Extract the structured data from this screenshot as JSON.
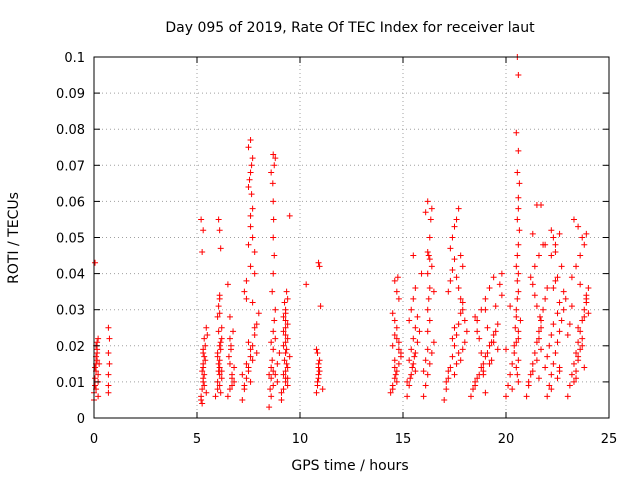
{
  "chart_data": {
    "type": "scatter",
    "title": "Day 095 of 2019, Rate Of TEC Index for receiver laut",
    "xlabel": "GPS time / hours",
    "ylabel": "ROTI / TECUs",
    "xlim": [
      0,
      25
    ],
    "ylim": [
      0,
      0.1
    ],
    "xticks": [
      "0",
      "5",
      "10",
      "15",
      "20",
      "25"
    ],
    "yticks": [
      "0",
      "0.01",
      "0.02",
      "0.03",
      "0.04",
      "0.05",
      "0.06",
      "0.07",
      "0.08",
      "0.09",
      "0.1"
    ],
    "grid": true,
    "marker": "+",
    "color": "#ff0000",
    "series": [
      {
        "name": "ROTI",
        "x": [
          0.0,
          0.05,
          0.05,
          0.1,
          0.1,
          0.1,
          0.15,
          0.15,
          0.2,
          0.2,
          0.2,
          0.25,
          0.05,
          0.1,
          0.15,
          0.0,
          0.2,
          0.1,
          0.15,
          0.05,
          0.7,
          0.7,
          0.75,
          0.7,
          0.7,
          0.75,
          0.7,
          5.2,
          5.25,
          5.3,
          5.3,
          5.35,
          5.4,
          5.45,
          5.3,
          5.2,
          5.25,
          5.35,
          5.2,
          5.3,
          5.25,
          5.4,
          5.3,
          5.35,
          5.35,
          5.3,
          5.25,
          5.45,
          5.5,
          5.3,
          5.9,
          6.0,
          6.05,
          6.1,
          6.15,
          6.2,
          6.0,
          6.05,
          6.1,
          6.0,
          6.1,
          6.2,
          6.1,
          6.05,
          6.15,
          6.1,
          6.0,
          6.1,
          6.2,
          6.1,
          6.15,
          6.05,
          6.0,
          6.1,
          6.05,
          6.1,
          6.2,
          6.15,
          6.5,
          6.6,
          6.7,
          6.8,
          6.55,
          6.65,
          6.75,
          6.6,
          6.7,
          6.6,
          6.8,
          6.7,
          6.65,
          6.5,
          6.6,
          7.2,
          7.3,
          7.4,
          7.5,
          7.6,
          7.7,
          7.8,
          7.9,
          8.0,
          7.3,
          7.4,
          7.6,
          7.8,
          7.5,
          7.6,
          7.7,
          7.5,
          7.6,
          7.65,
          7.7,
          7.6,
          7.5,
          7.55,
          7.65,
          7.7,
          7.6,
          7.8,
          7.4,
          7.5,
          7.6,
          7.7,
          7.9,
          7.3,
          7.2,
          7.6,
          7.4,
          7.5,
          7.7,
          7.8,
          8.5,
          8.6,
          8.7,
          8.8,
          8.9,
          9.0,
          8.6,
          8.7,
          8.75,
          8.8,
          8.65,
          8.7,
          8.75,
          8.7,
          8.72,
          8.7,
          8.68,
          8.75,
          8.6,
          8.8,
          8.7,
          8.9,
          8.5,
          8.6,
          8.65,
          8.7,
          8.8,
          8.55,
          8.6,
          8.7,
          9.1,
          9.2,
          9.3,
          9.4,
          9.5,
          9.2,
          9.3,
          9.4,
          9.3,
          9.25,
          9.35,
          9.3,
          9.2,
          9.3,
          9.4,
          9.3,
          9.35,
          9.2,
          9.3,
          9.4,
          9.1,
          9.5,
          9.4,
          9.3,
          9.25,
          9.3,
          9.35,
          9.2,
          9.3,
          9.4,
          10.3,
          10.8,
          10.85,
          10.9,
          10.95,
          10.9,
          10.85,
          10.8,
          10.9,
          10.95,
          11.0,
          10.9,
          10.85,
          11.1,
          10.9,
          10.95,
          14.4,
          14.5,
          14.6,
          14.7,
          14.8,
          14.9,
          14.5,
          14.6,
          14.6,
          14.7,
          14.8,
          14.5,
          14.6,
          14.7,
          14.8,
          14.9,
          14.6,
          14.65,
          14.7,
          14.5,
          14.6,
          14.8,
          14.7,
          14.75,
          15.2,
          15.3,
          15.4,
          15.5,
          15.6,
          15.7,
          15.8,
          15.3,
          15.4,
          15.5,
          15.6,
          15.9,
          15.2,
          15.5,
          15.6,
          15.3,
          15.4,
          15.5,
          15.6,
          15.7,
          15.35,
          15.45,
          15.55,
          16.0,
          16.1,
          16.2,
          16.3,
          16.4,
          16.5,
          16.2,
          16.3,
          16.2,
          16.25,
          16.3,
          16.2,
          16.25,
          16.3,
          16.35,
          16.2,
          16.4,
          16.1,
          16.2,
          16.3,
          16.4,
          16.5,
          16.0,
          16.1,
          16.2,
          17.0,
          17.1,
          17.2,
          17.3,
          17.4,
          17.5,
          17.6,
          17.7,
          17.8,
          17.9,
          17.2,
          17.3,
          17.4,
          17.5,
          17.3,
          17.4,
          17.5,
          17.6,
          17.7,
          17.8,
          17.9,
          17.6,
          17.7,
          17.8,
          17.9,
          17.5,
          17.6,
          17.7,
          18.0,
          18.1,
          18.0,
          17.1,
          17.2,
          17.8,
          17.9,
          17.4,
          17.5,
          18.3,
          18.5,
          18.7,
          18.9,
          19.1,
          19.3,
          19.5,
          18.6,
          18.8,
          19.0,
          19.2,
          19.4,
          18.5,
          18.9,
          19.3,
          19.6,
          18.7,
          19.1,
          18.4,
          18.6,
          18.8,
          19.0,
          19.2,
          19.4,
          19.6,
          19.8,
          18.5,
          19.5,
          19.8,
          19.7,
          19.0,
          18.9,
          19.2,
          18.8,
          19.4,
          18.6,
          19.0,
          20.0,
          20.1,
          20.2,
          20.3,
          20.4,
          20.5,
          20.6,
          20.7,
          20.5,
          20.55,
          20.6,
          20.55,
          20.5,
          20.55,
          20.6,
          20.65,
          20.55,
          20.6,
          20.6,
          20.65,
          20.55,
          20.6,
          20.5,
          20.6,
          20.55,
          20.6,
          20.5,
          20.45,
          20.6,
          20.4,
          20.6,
          20.5,
          20.55,
          20.6,
          20.2,
          20.3,
          20.0,
          21.0,
          21.1,
          21.2,
          21.3,
          21.4,
          21.5,
          21.6,
          21.7,
          21.8,
          21.9,
          22.0,
          21.2,
          21.4,
          21.6,
          21.8,
          21.3,
          21.5,
          21.7,
          21.9,
          21.1,
          21.3,
          21.5,
          21.7,
          21.6,
          21.7,
          21.65,
          21.5,
          21.4,
          21.3,
          21.6,
          21.9,
          22.0,
          22.1,
          22.2,
          22.3,
          22.4,
          22.5,
          22.6,
          22.7,
          22.8,
          22.9,
          22.3,
          22.5,
          22.7,
          22.2,
          22.4,
          22.6,
          22.2,
          22.3,
          22.4,
          22.5,
          22.6,
          22.0,
          22.1,
          22.2,
          22.3,
          22.5,
          22.6,
          22.8,
          22.4,
          22.2,
          22.6,
          23.0,
          23.1,
          23.2,
          23.3,
          23.4,
          23.5,
          23.6,
          23.7,
          23.8,
          23.9,
          24.0,
          23.2,
          23.4,
          23.6,
          23.8,
          23.9,
          23.3,
          23.5,
          23.7,
          23.3,
          23.4,
          23.5,
          23.6,
          23.7,
          23.5,
          23.8,
          23.2,
          23.9,
          23.6,
          23.4,
          23.8,
          23.5,
          23.7,
          23.0,
          23.1,
          24.0,
          23.9
        ],
        "y": [
          0.007,
          0.009,
          0.011,
          0.013,
          0.015,
          0.017,
          0.019,
          0.021,
          0.022,
          0.006,
          0.01,
          0.015,
          0.043,
          0.008,
          0.018,
          0.005,
          0.012,
          0.02,
          0.016,
          0.014,
          0.025,
          0.018,
          0.015,
          0.012,
          0.009,
          0.022,
          0.007,
          0.005,
          0.008,
          0.011,
          0.014,
          0.017,
          0.02,
          0.025,
          0.01,
          0.006,
          0.013,
          0.022,
          0.055,
          0.052,
          0.046,
          0.016,
          0.019,
          0.012,
          0.009,
          0.015,
          0.004,
          0.007,
          0.023,
          0.018,
          0.006,
          0.01,
          0.013,
          0.016,
          0.019,
          0.022,
          0.028,
          0.031,
          0.034,
          0.008,
          0.012,
          0.025,
          0.052,
          0.055,
          0.047,
          0.014,
          0.017,
          0.02,
          0.011,
          0.009,
          0.007,
          0.015,
          0.018,
          0.033,
          0.024,
          0.029,
          0.013,
          0.021,
          0.006,
          0.008,
          0.011,
          0.014,
          0.017,
          0.02,
          0.024,
          0.028,
          0.012,
          0.015,
          0.01,
          0.009,
          0.019,
          0.037,
          0.022,
          0.005,
          0.008,
          0.011,
          0.014,
          0.017,
          0.02,
          0.023,
          0.026,
          0.029,
          0.035,
          0.038,
          0.042,
          0.04,
          0.048,
          0.056,
          0.05,
          0.064,
          0.068,
          0.07,
          0.072,
          0.077,
          0.075,
          0.066,
          0.062,
          0.058,
          0.053,
          0.046,
          0.033,
          0.013,
          0.01,
          0.016,
          0.018,
          0.009,
          0.012,
          0.019,
          0.015,
          0.021,
          0.032,
          0.025,
          0.003,
          0.006,
          0.009,
          0.012,
          0.015,
          0.018,
          0.021,
          0.024,
          0.027,
          0.03,
          0.035,
          0.04,
          0.045,
          0.05,
          0.055,
          0.06,
          0.065,
          0.07,
          0.068,
          0.072,
          0.073,
          0.01,
          0.012,
          0.014,
          0.016,
          0.019,
          0.022,
          0.008,
          0.011,
          0.013,
          0.005,
          0.008,
          0.011,
          0.014,
          0.017,
          0.02,
          0.023,
          0.026,
          0.029,
          0.032,
          0.035,
          0.03,
          0.028,
          0.025,
          0.022,
          0.018,
          0.015,
          0.012,
          0.01,
          0.009,
          0.007,
          0.056,
          0.033,
          0.021,
          0.016,
          0.013,
          0.019,
          0.024,
          0.027,
          0.011,
          0.037,
          0.007,
          0.009,
          0.011,
          0.013,
          0.015,
          0.018,
          0.019,
          0.043,
          0.042,
          0.031,
          0.012,
          0.01,
          0.008,
          0.014,
          0.016,
          0.007,
          0.009,
          0.011,
          0.013,
          0.015,
          0.017,
          0.02,
          0.023,
          0.038,
          0.035,
          0.033,
          0.029,
          0.027,
          0.025,
          0.021,
          0.018,
          0.014,
          0.012,
          0.01,
          0.008,
          0.016,
          0.019,
          0.022,
          0.039,
          0.006,
          0.009,
          0.012,
          0.015,
          0.018,
          0.021,
          0.024,
          0.027,
          0.03,
          0.033,
          0.036,
          0.04,
          0.01,
          0.045,
          0.013,
          0.016,
          0.019,
          0.022,
          0.025,
          0.028,
          0.011,
          0.014,
          0.017,
          0.006,
          0.009,
          0.012,
          0.015,
          0.018,
          0.021,
          0.024,
          0.027,
          0.03,
          0.033,
          0.036,
          0.04,
          0.045,
          0.05,
          0.055,
          0.06,
          0.058,
          0.057,
          0.046,
          0.044,
          0.042,
          0.035,
          0.013,
          0.016,
          0.019,
          0.005,
          0.008,
          0.011,
          0.014,
          0.017,
          0.02,
          0.023,
          0.026,
          0.029,
          0.032,
          0.035,
          0.038,
          0.041,
          0.044,
          0.047,
          0.05,
          0.053,
          0.055,
          0.058,
          0.045,
          0.042,
          0.039,
          0.036,
          0.033,
          0.03,
          0.012,
          0.015,
          0.018,
          0.021,
          0.024,
          0.027,
          0.01,
          0.013,
          0.016,
          0.019,
          0.022,
          0.025,
          0.006,
          0.009,
          0.012,
          0.015,
          0.018,
          0.021,
          0.024,
          0.027,
          0.03,
          0.033,
          0.036,
          0.039,
          0.01,
          0.013,
          0.016,
          0.019,
          0.022,
          0.025,
          0.008,
          0.011,
          0.014,
          0.017,
          0.02,
          0.023,
          0.026,
          0.04,
          0.028,
          0.031,
          0.034,
          0.037,
          0.007,
          0.012,
          0.015,
          0.018,
          0.021,
          0.024,
          0.03,
          0.006,
          0.009,
          0.012,
          0.015,
          0.018,
          0.021,
          0.024,
          0.027,
          0.03,
          0.033,
          0.035,
          0.038,
          0.042,
          0.045,
          0.048,
          0.052,
          0.055,
          0.058,
          0.061,
          0.065,
          0.068,
          0.074,
          0.079,
          0.095,
          0.1,
          0.04,
          0.028,
          0.025,
          0.022,
          0.02,
          0.016,
          0.014,
          0.012,
          0.01,
          0.031,
          0.008,
          0.019,
          0.006,
          0.009,
          0.012,
          0.015,
          0.018,
          0.021,
          0.024,
          0.027,
          0.03,
          0.033,
          0.036,
          0.039,
          0.042,
          0.045,
          0.048,
          0.051,
          0.059,
          0.059,
          0.048,
          0.01,
          0.013,
          0.016,
          0.019,
          0.022,
          0.025,
          0.028,
          0.031,
          0.034,
          0.037,
          0.011,
          0.014,
          0.006,
          0.009,
          0.012,
          0.015,
          0.018,
          0.021,
          0.024,
          0.027,
          0.03,
          0.033,
          0.036,
          0.039,
          0.042,
          0.045,
          0.048,
          0.051,
          0.052,
          0.05,
          0.046,
          0.011,
          0.014,
          0.017,
          0.02,
          0.023,
          0.026,
          0.029,
          0.032,
          0.035,
          0.038,
          0.008,
          0.013,
          0.006,
          0.009,
          0.012,
          0.015,
          0.018,
          0.021,
          0.024,
          0.027,
          0.03,
          0.033,
          0.036,
          0.039,
          0.042,
          0.045,
          0.048,
          0.051,
          0.055,
          0.053,
          0.05,
          0.01,
          0.013,
          0.016,
          0.019,
          0.022,
          0.025,
          0.028,
          0.031,
          0.034,
          0.037,
          0.011,
          0.014,
          0.017,
          0.02,
          0.023,
          0.026,
          0.029,
          0.032
        ]
      }
    ]
  }
}
